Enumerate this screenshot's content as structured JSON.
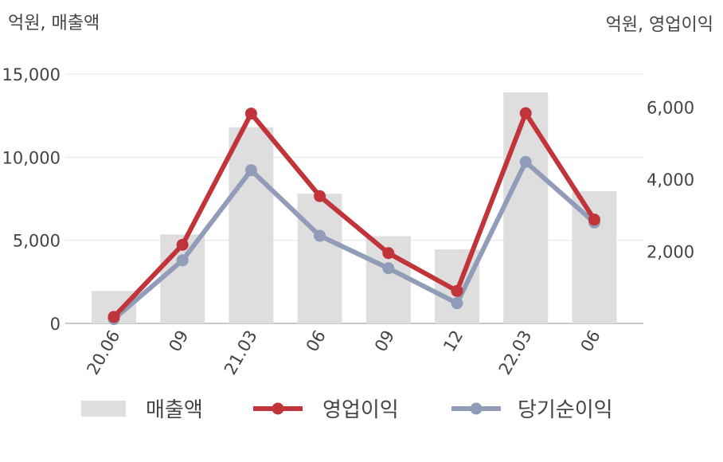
{
  "chart_data": {
    "type": "bar",
    "categories": [
      "20.06",
      "09",
      "21.03",
      "06",
      "09",
      "12",
      "22.03",
      "06"
    ],
    "left_axis": {
      "unit_label": "억원, 매출액",
      "ylim": [
        0,
        15000
      ],
      "ticks": [
        0,
        5000,
        10000,
        15000
      ],
      "tick_labels": [
        "0",
        "5,000",
        "10,000",
        "15,000"
      ]
    },
    "right_axis": {
      "unit_label": "억원, 영업이익",
      "ylim": [
        0,
        6916
      ],
      "ticks": [
        2000,
        4000,
        6000
      ],
      "tick_labels": [
        "2,000",
        "4,000",
        "6,000"
      ]
    },
    "series": [
      {
        "name": "매출액",
        "type": "bar",
        "axis": "left",
        "color": "#dedede",
        "values": [
          1950,
          5350,
          11800,
          7800,
          5250,
          4450,
          13900,
          7950
        ]
      },
      {
        "name": "영업이익",
        "type": "line",
        "axis": "right",
        "color": "#c0343a",
        "values": [
          180,
          2180,
          5820,
          3530,
          1950,
          900,
          5830,
          2880
        ]
      },
      {
        "name": "당기순이익",
        "type": "line",
        "axis": "right",
        "color": "#909cb8",
        "values": [
          120,
          1750,
          4250,
          2430,
          1530,
          560,
          4480,
          2800
        ]
      }
    ],
    "grid": true,
    "legend_position": "bottom"
  }
}
